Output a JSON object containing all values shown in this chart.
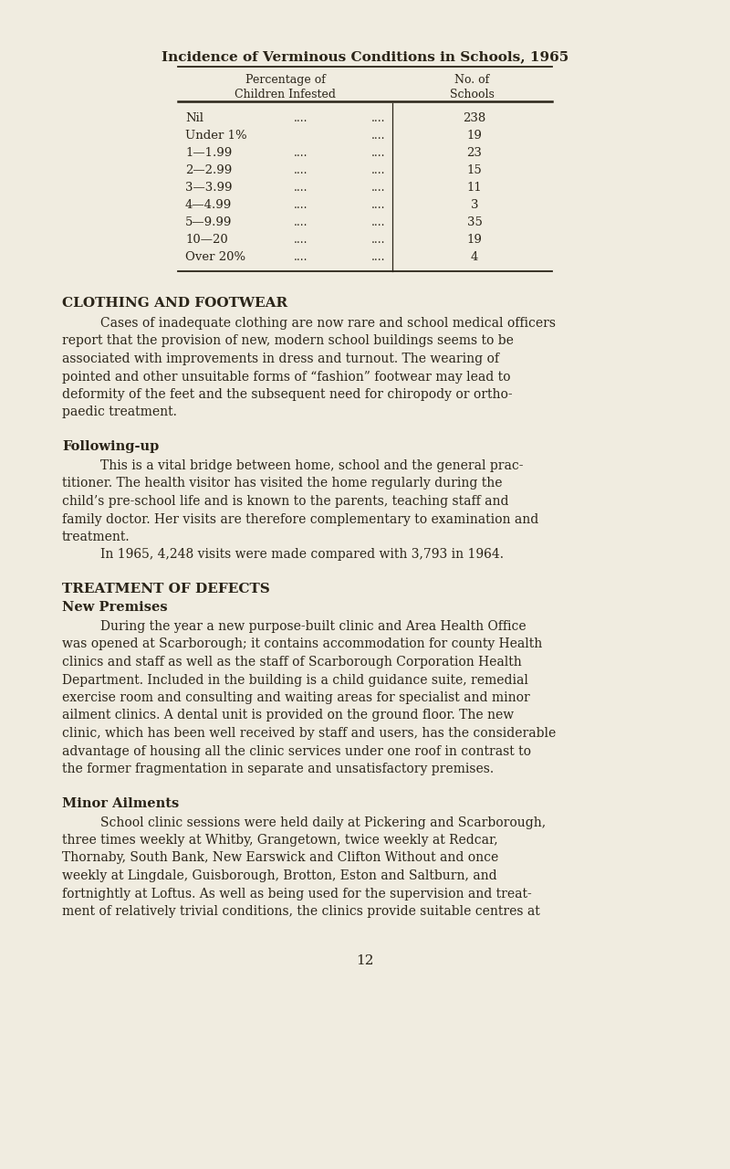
{
  "bg_color": "#f0ece0",
  "text_color": "#2a2418",
  "page_width": 8.0,
  "page_height": 12.8,
  "dpi": 100,
  "title": "Incidence of Verminous Conditions in Schools, 1965",
  "col1_header_line1": "Percentage of",
  "col1_header_line2": "Children Infested",
  "col2_header_line1": "No. of",
  "col2_header_line2": "Schools",
  "table_rows": [
    [
      "Nil",
      "....",
      "....",
      "238"
    ],
    [
      "Under 1%",
      "",
      "....",
      "19"
    ],
    [
      "1—1.99",
      "....",
      "....",
      "23"
    ],
    [
      "2—2.99",
      "....",
      "....",
      "15"
    ],
    [
      "3—3.99",
      "....",
      "....",
      "11"
    ],
    [
      "4—4.99",
      "....",
      "....",
      "3"
    ],
    [
      "5—9.99",
      "....",
      "....",
      "35"
    ],
    [
      "10—20",
      "....",
      "....",
      "19"
    ],
    [
      "Over 20%",
      "....",
      "....",
      "4"
    ]
  ],
  "section1_heading": "CLOTHING AND FOOTWEAR",
  "section2_heading": "Following-up",
  "section3_heading": "TREATMENT OF DEFECTS",
  "section3_subheading": "New Premises",
  "section4_heading": "Minor Ailments",
  "page_number": "12",
  "para1_lines": [
    "Cases of inadequate clothing are now rare and school medical officers",
    "report that the provision of new, modern school buildings seems to be",
    "associated with improvements in dress and turnout. The wearing of",
    "pointed and other unsuitable forms of “fashion” footwear may lead to",
    "deformity of the feet and the subsequent need for chiropody or ortho-",
    "paedic treatment."
  ],
  "para2_lines": [
    "This is a vital bridge between home, school and the general prac-",
    "titioner. The health visitor has visited the home regularly during the",
    "child’s pre-school life and is known to the parents, teaching staff and",
    "family doctor. Her visits are therefore complementary to examination and",
    "treatment."
  ],
  "para2b": "In 1965, 4,248 visits were made compared with 3,793 in 1964.",
  "para3_lines": [
    "During the year a new purpose-built clinic and Area Health Office",
    "was opened at Scarborough; it contains accommodation for county Health",
    "clinics and staff as well as the staff of Scarborough Corporation Health",
    "Department. Included in the building is a child guidance suite, remedial",
    "exercise room and consulting and waiting areas for specialist and minor",
    "ailment clinics. A dental unit is provided on the ground floor. The new",
    "clinic, which has been well received by staff and users, has the considerable",
    "advantage of housing all the clinic services under one roof in contrast to",
    "the former fragmentation in separate and unsatisfactory premises."
  ],
  "para4_lines": [
    "School clinic sessions were held daily at Pickering and Scarborough,",
    "three times weekly at Whitby, Grangetown, twice weekly at Redcar,",
    "Thornaby, South Bank, New Earswick and Clifton Without and once",
    "weekly at Lingdale, Guisborough, Brotton, Eston and Saltburn, and",
    "fortnightly at Loftus. As well as being used for the supervision and treat-",
    "ment of relatively trivial conditions, the clinics provide suitable centres at"
  ]
}
